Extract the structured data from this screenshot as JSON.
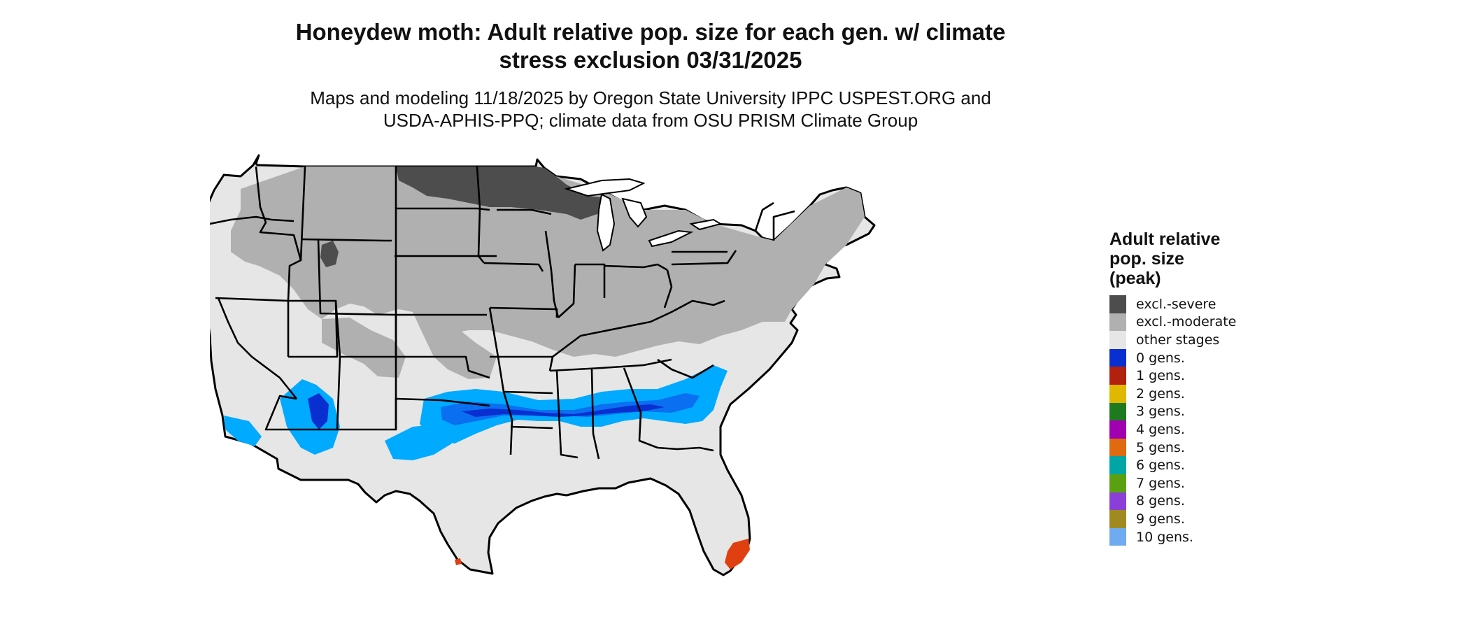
{
  "title_line1": "Honeydew moth: Adult relative pop. size for each gen. w/ climate",
  "title_line2": "stress exclusion 03/31/2025",
  "subtitle_line1": "Maps and modeling 11/18/2025 by Oregon State University IPPC USPEST.ORG and",
  "subtitle_line2": "USDA-APHIS-PPQ; climate data from OSU PRISM Climate Group",
  "legend": {
    "title_lines": [
      "Adult relative",
      "pop. size",
      "(peak)"
    ],
    "items": [
      {
        "label": "excl.-severe",
        "color": "#4d4d4d"
      },
      {
        "label": "excl.-moderate",
        "color": "#b0b0b0"
      },
      {
        "label": "other stages",
        "color": "#e6e6e6"
      },
      {
        "label": "0 gens.",
        "color": "#0a2fd0"
      },
      {
        "label": "1 gens.",
        "color": "#b22010"
      },
      {
        "label": "2 gens.",
        "color": "#e0b800"
      },
      {
        "label": "3 gens.",
        "color": "#1f7a1f"
      },
      {
        "label": "4 gens.",
        "color": "#a100b0"
      },
      {
        "label": "5 gens.",
        "color": "#e06a10"
      },
      {
        "label": "6 gens.",
        "color": "#00a6a6"
      },
      {
        "label": "7 gens.",
        "color": "#5aa010"
      },
      {
        "label": "8 gens.",
        "color": "#8a40d8"
      },
      {
        "label": "9 gens.",
        "color": "#a08a20"
      },
      {
        "label": "10 gens.",
        "color": "#70aaf0"
      }
    ]
  },
  "map_colors": {
    "light_blue": "#00aaff",
    "mid_blue": "#0a6ff0",
    "dark_blue": "#0a2fd0",
    "orange_red": "#e04010",
    "border": "#000000"
  }
}
